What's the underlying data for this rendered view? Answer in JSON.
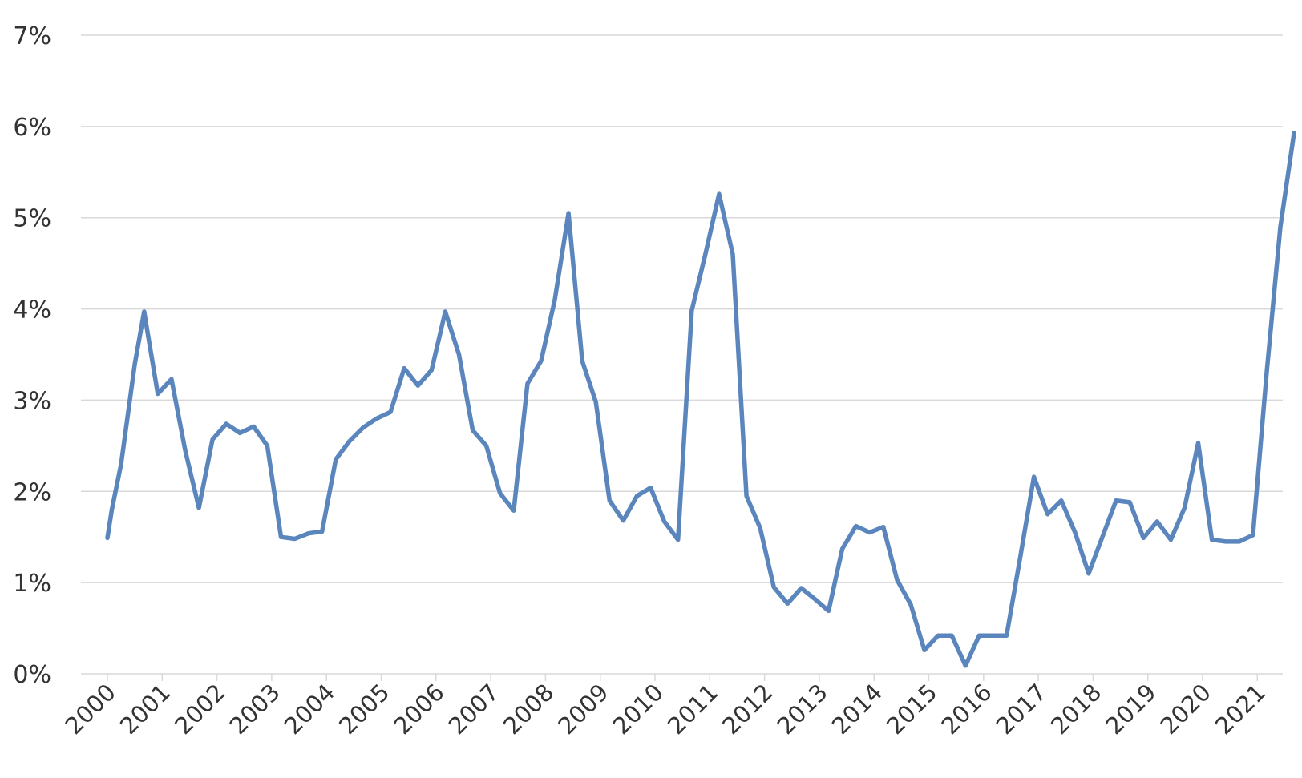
{
  "chart_data": {
    "type": "line",
    "grid": true,
    "legend": "none",
    "ylim": [
      0,
      7
    ],
    "y_ticks": [
      "0%",
      "1%",
      "2%",
      "3%",
      "4%",
      "5%",
      "6%",
      "7%"
    ],
    "x_ticks": [
      "2000",
      "2001",
      "2002",
      "2003",
      "2004",
      "2005",
      "2006",
      "2007",
      "2008",
      "2009",
      "2010",
      "2011",
      "2012",
      "2013",
      "2014",
      "2015",
      "2016",
      "2017",
      "2018",
      "2019",
      "2020",
      "2021"
    ],
    "x_range": [
      2000,
      2022
    ],
    "series": [
      {
        "color": "#5b86bd",
        "points": [
          [
            2000.0,
            1.49
          ],
          [
            2000.08,
            1.8
          ],
          [
            2000.25,
            2.3
          ],
          [
            2000.5,
            3.4
          ],
          [
            2000.67,
            3.97
          ],
          [
            2000.92,
            3.07
          ],
          [
            2001.17,
            3.23
          ],
          [
            2001.42,
            2.45
          ],
          [
            2001.67,
            1.82
          ],
          [
            2001.92,
            2.57
          ],
          [
            2002.08,
            2.68
          ],
          [
            2002.17,
            2.74
          ],
          [
            2002.42,
            2.64
          ],
          [
            2002.67,
            2.71
          ],
          [
            2002.92,
            2.5
          ],
          [
            2003.17,
            1.5
          ],
          [
            2003.42,
            1.48
          ],
          [
            2003.67,
            1.54
          ],
          [
            2003.92,
            1.56
          ],
          [
            2004.17,
            2.35
          ],
          [
            2004.42,
            2.55
          ],
          [
            2004.67,
            2.7
          ],
          [
            2004.92,
            2.8
          ],
          [
            2005.17,
            2.87
          ],
          [
            2005.42,
            3.35
          ],
          [
            2005.67,
            3.16
          ],
          [
            2005.92,
            3.33
          ],
          [
            2006.17,
            3.97
          ],
          [
            2006.42,
            3.5
          ],
          [
            2006.67,
            2.67
          ],
          [
            2006.92,
            2.5
          ],
          [
            2007.17,
            1.98
          ],
          [
            2007.42,
            1.79
          ],
          [
            2007.67,
            3.18
          ],
          [
            2007.92,
            3.43
          ],
          [
            2008.17,
            4.1
          ],
          [
            2008.42,
            5.05
          ],
          [
            2008.67,
            3.43
          ],
          [
            2008.92,
            2.98
          ],
          [
            2009.17,
            1.9
          ],
          [
            2009.42,
            1.68
          ],
          [
            2009.67,
            1.95
          ],
          [
            2009.92,
            2.04
          ],
          [
            2010.17,
            1.67
          ],
          [
            2010.42,
            1.47
          ],
          [
            2010.67,
            3.98
          ],
          [
            2010.92,
            4.6
          ],
          [
            2011.17,
            5.26
          ],
          [
            2011.42,
            4.6
          ],
          [
            2011.67,
            1.95
          ],
          [
            2011.92,
            1.6
          ],
          [
            2012.17,
            0.95
          ],
          [
            2012.42,
            0.77
          ],
          [
            2012.67,
            0.94
          ],
          [
            2012.92,
            0.82
          ],
          [
            2013.17,
            0.69
          ],
          [
            2013.42,
            1.37
          ],
          [
            2013.67,
            1.62
          ],
          [
            2013.92,
            1.55
          ],
          [
            2014.17,
            1.61
          ],
          [
            2014.42,
            1.03
          ],
          [
            2014.67,
            0.76
          ],
          [
            2014.92,
            0.26
          ],
          [
            2015.17,
            0.42
          ],
          [
            2015.42,
            0.42
          ],
          [
            2015.67,
            0.09
          ],
          [
            2015.92,
            0.42
          ],
          [
            2016.17,
            0.42
          ],
          [
            2016.42,
            0.42
          ],
          [
            2016.67,
            1.28
          ],
          [
            2016.92,
            2.16
          ],
          [
            2017.17,
            1.75
          ],
          [
            2017.42,
            1.9
          ],
          [
            2017.67,
            1.55
          ],
          [
            2017.92,
            1.1
          ],
          [
            2018.17,
            1.5
          ],
          [
            2018.42,
            1.9
          ],
          [
            2018.67,
            1.88
          ],
          [
            2018.92,
            1.49
          ],
          [
            2019.17,
            1.67
          ],
          [
            2019.42,
            1.47
          ],
          [
            2019.67,
            1.82
          ],
          [
            2019.92,
            2.53
          ],
          [
            2020.17,
            1.47
          ],
          [
            2020.42,
            1.45
          ],
          [
            2020.67,
            1.45
          ],
          [
            2020.92,
            1.52
          ],
          [
            2021.17,
            3.3
          ],
          [
            2021.42,
            4.9
          ],
          [
            2021.67,
            5.93
          ]
        ]
      }
    ]
  }
}
